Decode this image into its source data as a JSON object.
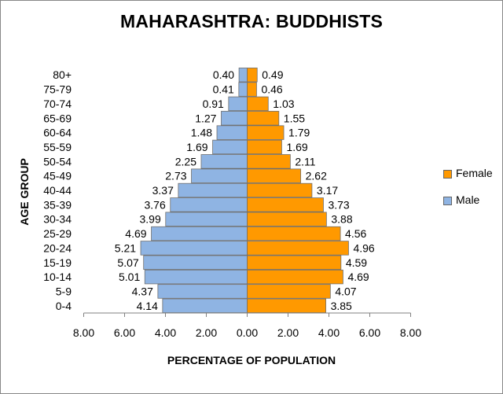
{
  "chart_data": {
    "type": "bar",
    "orientation": "horizontal",
    "title": "MAHARASHTRA: BUDDHISTS",
    "xlabel": "PERCENTAGE OF POPULATION",
    "ylabel": "AGE GROUP",
    "categories": [
      "0-4",
      "5-9",
      "10-14",
      "15-19",
      "20-24",
      "25-29",
      "30-34",
      "35-39",
      "40-44",
      "45-49",
      "50-54",
      "55-59",
      "60-64",
      "65-69",
      "70-74",
      "75-79",
      "80+"
    ],
    "series": [
      {
        "name": "Female",
        "color": "#ff9900",
        "values": [
          3.85,
          4.07,
          4.69,
          4.59,
          4.96,
          4.56,
          3.88,
          3.73,
          3.17,
          2.62,
          2.11,
          1.69,
          1.79,
          1.55,
          1.03,
          0.46,
          0.49
        ]
      },
      {
        "name": "Male",
        "color": "#8fb4e3",
        "values": [
          4.14,
          4.37,
          5.01,
          5.07,
          5.21,
          4.69,
          3.99,
          3.76,
          3.37,
          2.73,
          2.25,
          1.69,
          1.48,
          1.27,
          0.91,
          0.41,
          0.4
        ]
      }
    ],
    "xlim": [
      -8,
      8
    ],
    "xticks": [
      "8.00",
      "6.00",
      "4.00",
      "2.00",
      "0.00",
      "2.00",
      "4.00",
      "6.00",
      "8.00"
    ],
    "grid": false,
    "legend": "right"
  }
}
